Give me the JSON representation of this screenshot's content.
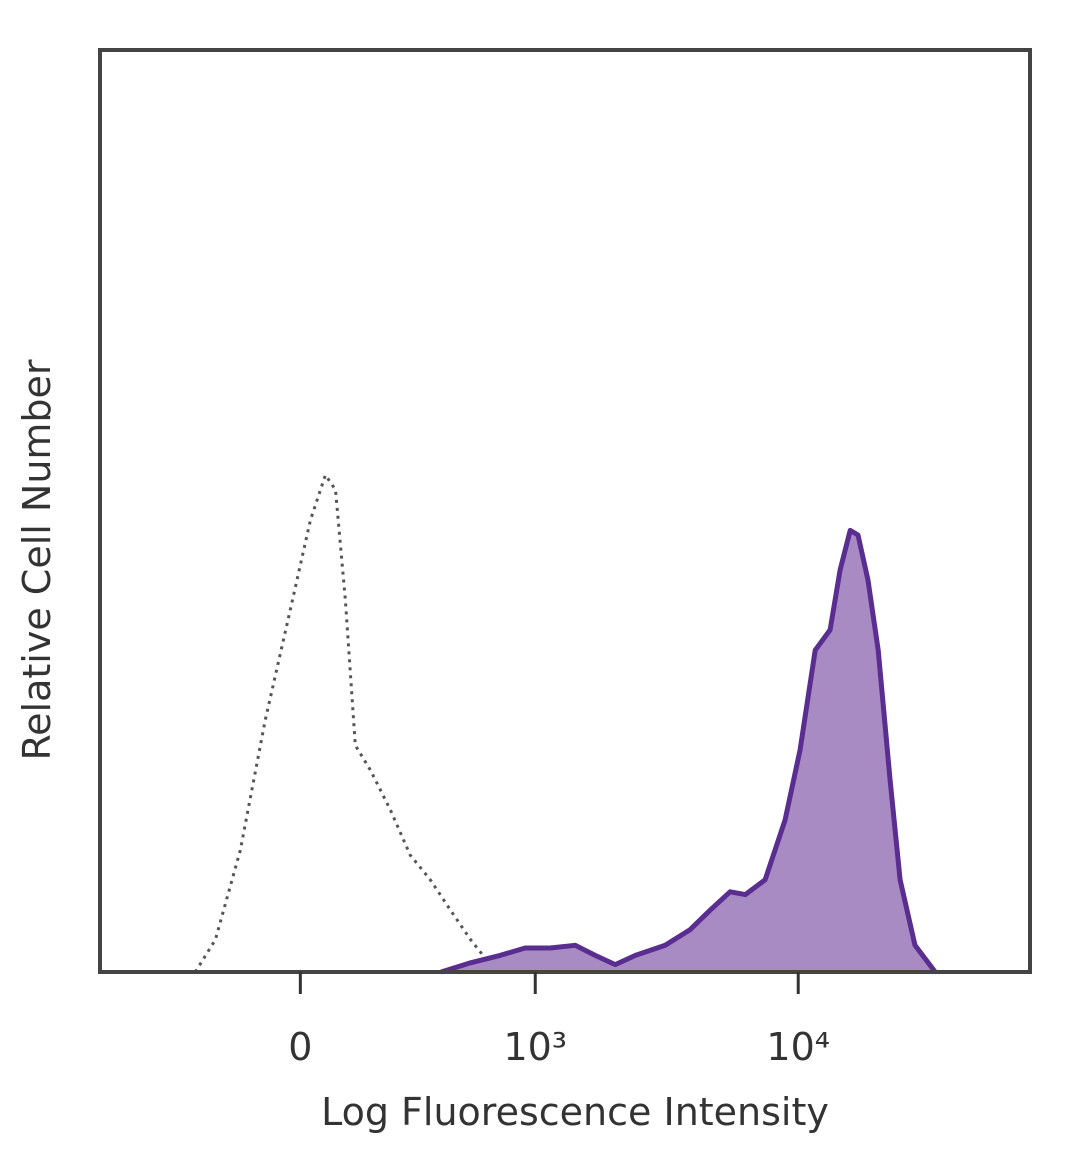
{
  "chart_data": {
    "type": "histogram-overlay",
    "x_label": "Log Fluorescence Intensity",
    "y_label": "Relative Cell Number",
    "xscale": "biexponential",
    "xlim": [
      -730,
      75000
    ],
    "ylim": [
      0,
      100
    ],
    "xticks": [
      0,
      {
        "value": 1000,
        "label": "10³"
      },
      {
        "value": 10000,
        "label": "10⁴"
      }
    ],
    "series": [
      {
        "color": "#555555",
        "line_style": "dotted",
        "fill": false,
        "x": [
          -276,
          -213,
          -144,
          -82,
          -23,
          23,
          58,
          82,
          106,
          131,
          171,
          228,
          292,
          366,
          451,
          550,
          663,
          726
        ],
        "values": [
          0,
          3.5,
          13.2,
          27.3,
          39.3,
          49.0,
          53.9,
          52.3,
          40.3,
          24.6,
          21.9,
          17.6,
          12.7,
          10.0,
          6.7,
          3.5,
          0.8,
          0
        ]
      },
      {
        "color": "#5a2d91",
        "line_style": "solid",
        "fill": "#a98bc4",
        "x": [
          410,
          550,
          726,
          913,
          1143,
          1428,
          1703,
          2030,
          2421,
          3142,
          3907,
          4646,
          5531,
          6310,
          7498,
          8923,
          10164,
          11590,
          13200,
          14390,
          15710,
          16820,
          18350,
          20040,
          22230,
          24240,
          27610,
          32890
        ],
        "values": [
          0,
          1.0,
          1.8,
          2.6,
          2.6,
          2.9,
          1.8,
          0.8,
          1.8,
          2.9,
          4.6,
          6.7,
          8.7,
          8.4,
          10.0,
          16.5,
          24.1,
          34.9,
          37.1,
          43.6,
          47.9,
          47.4,
          42.5,
          34.9,
          20.8,
          10.0,
          2.9,
          0
        ]
      }
    ]
  }
}
